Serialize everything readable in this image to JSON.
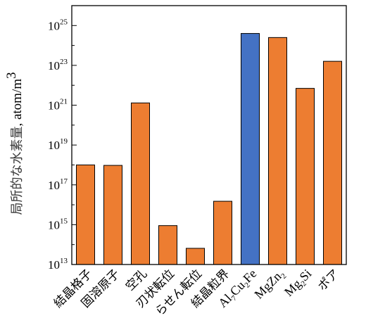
{
  "chart_data": {
    "type": "bar",
    "yscale": "log",
    "ylim": [
      10000000000000.0,
      1e+26
    ],
    "ylabel": {
      "jp": "局所的な水素量",
      "comma": ",",
      "unit": "atom/m",
      "unit_sup": "3"
    },
    "yticks": [
      {
        "base": "10",
        "exp": "13",
        "value": 10000000000000.0
      },
      {
        "base": "10",
        "exp": "15",
        "value": 1000000000000000.0
      },
      {
        "base": "10",
        "exp": "17",
        "value": 1e+17
      },
      {
        "base": "10",
        "exp": "19",
        "value": 1e+19
      },
      {
        "base": "10",
        "exp": "21",
        "value": 1e+21
      },
      {
        "base": "10",
        "exp": "23",
        "value": 1e+23
      },
      {
        "base": "10",
        "exp": "25",
        "value": 1e+25
      }
    ],
    "categories": [
      {
        "parts": [
          {
            "t": "結晶格子"
          }
        ],
        "latin": false
      },
      {
        "parts": [
          {
            "t": "固溶原子"
          }
        ],
        "latin": false
      },
      {
        "parts": [
          {
            "t": "空孔"
          }
        ],
        "latin": false
      },
      {
        "parts": [
          {
            "t": "刃状転位"
          }
        ],
        "latin": false
      },
      {
        "parts": [
          {
            "t": "らせん転位"
          }
        ],
        "latin": false
      },
      {
        "parts": [
          {
            "t": "結晶粒界"
          }
        ],
        "latin": false
      },
      {
        "parts": [
          {
            "t": "Al"
          },
          {
            "t": "7",
            "sub": true
          },
          {
            "t": "Cu"
          },
          {
            "t": "2",
            "sub": true
          },
          {
            "t": "Fe"
          }
        ],
        "latin": true
      },
      {
        "parts": [
          {
            "t": "MgZn"
          },
          {
            "t": "2",
            "sub": true
          }
        ],
        "latin": true
      },
      {
        "parts": [
          {
            "t": "Mg"
          },
          {
            "t": "2",
            "sub": true
          },
          {
            "t": "Si"
          }
        ],
        "latin": true
      },
      {
        "parts": [
          {
            "t": "ポア"
          }
        ],
        "latin": false
      }
    ],
    "values": [
      1e+18,
      9.5e+17,
      1.3e+21,
      900000000000000.0,
      65000000000000.0,
      1.5e+16,
      4e+24,
      2.5e+24,
      7e+21,
      1.6e+23
    ],
    "colors": [
      "#ed7d31",
      "#ed7d31",
      "#ed7d31",
      "#ed7d31",
      "#ed7d31",
      "#ed7d31",
      "#4472c4",
      "#ed7d31",
      "#ed7d31",
      "#ed7d31"
    ],
    "grid": false,
    "legend": "none"
  }
}
